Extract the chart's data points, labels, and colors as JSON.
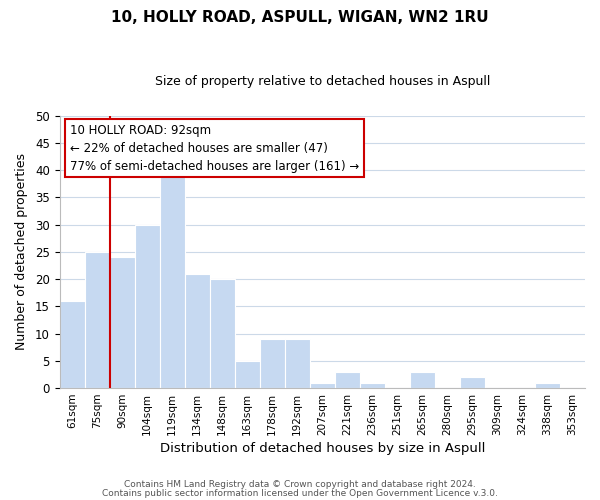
{
  "title": "10, HOLLY ROAD, ASPULL, WIGAN, WN2 1RU",
  "subtitle": "Size of property relative to detached houses in Aspull",
  "xlabel": "Distribution of detached houses by size in Aspull",
  "ylabel": "Number of detached properties",
  "bar_labels": [
    "61sqm",
    "75sqm",
    "90sqm",
    "104sqm",
    "119sqm",
    "134sqm",
    "148sqm",
    "163sqm",
    "178sqm",
    "192sqm",
    "207sqm",
    "221sqm",
    "236sqm",
    "251sqm",
    "265sqm",
    "280sqm",
    "295sqm",
    "309sqm",
    "324sqm",
    "338sqm",
    "353sqm"
  ],
  "bar_values": [
    16,
    25,
    24,
    30,
    39,
    21,
    20,
    5,
    9,
    9,
    1,
    3,
    1,
    0,
    3,
    0,
    2,
    0,
    0,
    1,
    0
  ],
  "bar_color": "#c6d9f1",
  "bar_edge_color": "#ffffff",
  "vline_color": "#cc0000",
  "vline_index": 2,
  "annotation_text": "10 HOLLY ROAD: 92sqm\n← 22% of detached houses are smaller (47)\n77% of semi-detached houses are larger (161) →",
  "annotation_box_color": "white",
  "annotation_box_edgecolor": "#cc0000",
  "ylim": [
    0,
    50
  ],
  "yticks": [
    0,
    5,
    10,
    15,
    20,
    25,
    30,
    35,
    40,
    45,
    50
  ],
  "footnote1": "Contains HM Land Registry data © Crown copyright and database right 2024.",
  "footnote2": "Contains public sector information licensed under the Open Government Licence v.3.0.",
  "background_color": "#ffffff",
  "grid_color": "#ccd9e8",
  "title_fontsize": 11,
  "subtitle_fontsize": 9
}
